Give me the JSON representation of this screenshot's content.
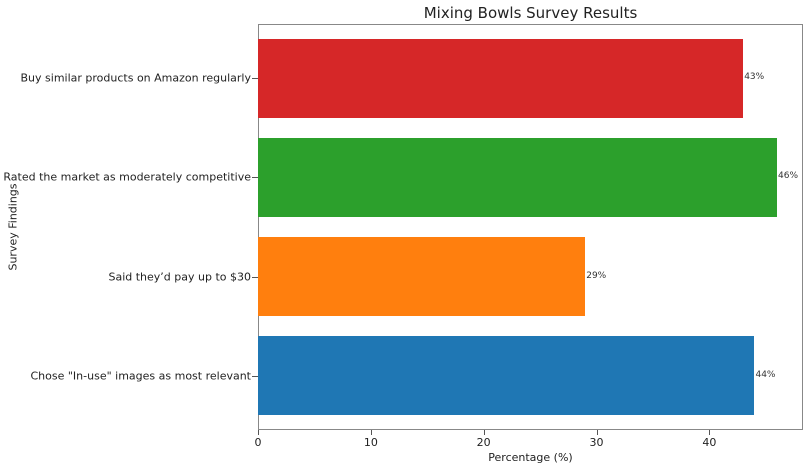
{
  "chart_data": {
    "type": "bar",
    "orientation": "horizontal",
    "title": "Mixing Bowls Survey Results",
    "xlabel": "Percentage (%)",
    "ylabel": "Survey Findings",
    "xlim": [
      0,
      48.3
    ],
    "x_ticks": [
      "0",
      "10",
      "20",
      "30",
      "40"
    ],
    "grid": false,
    "legend": null,
    "categories": [
      "Chose \"In-use\" images as most relevant",
      "Said they’d pay up to $30",
      "Rated the market as moderately competitive",
      "Buy similar products on Amazon regularly"
    ],
    "values": [
      44,
      29,
      46,
      43
    ],
    "value_labels": [
      "44%",
      "29%",
      "46%",
      "43%"
    ],
    "colors": [
      "#1f77b4",
      "#ff7f0e",
      "#2ca02c",
      "#d62728"
    ]
  }
}
